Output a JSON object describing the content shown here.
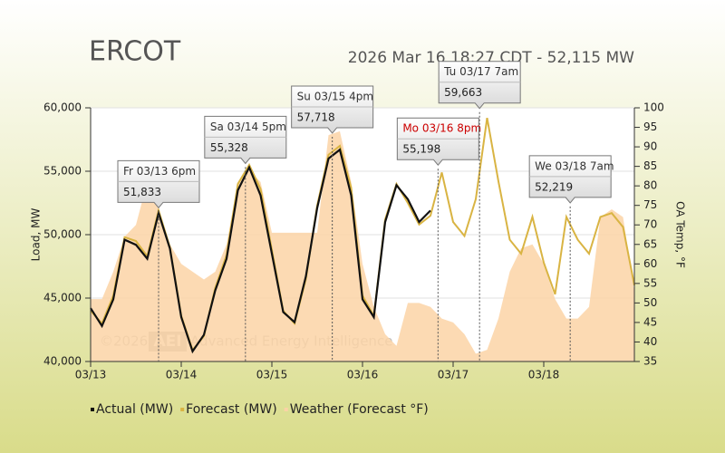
{
  "chart_data": {
    "type": "line",
    "title": "ERCOT",
    "subtitle": "2026 Mar 16 18:27 CDT - 52,115 MW",
    "ylabel": "Load, MW",
    "y2label": "OA Temp, °F",
    "watermark": [
      "©2026",
      "AEI",
      "Advanced Energy Intelligence"
    ],
    "x": [
      0,
      3,
      6,
      9,
      12,
      15,
      18,
      21,
      24,
      27,
      30,
      33,
      36,
      39,
      42,
      45,
      48,
      51,
      54,
      57,
      60,
      63,
      66,
      69,
      72,
      75,
      78,
      81,
      84,
      87,
      90,
      93,
      96,
      99,
      102,
      105,
      108,
      111,
      114,
      117,
      120,
      123,
      126,
      129,
      132,
      135,
      138,
      141,
      144
    ],
    "xlim": [
      0,
      144
    ],
    "xticks": [
      {
        "value": 0,
        "label": "03/13"
      },
      {
        "value": 24,
        "label": "03/14"
      },
      {
        "value": 48,
        "label": "03/15"
      },
      {
        "value": 72,
        "label": "03/16"
      },
      {
        "value": 96,
        "label": "03/17"
      },
      {
        "value": 120,
        "label": "03/18"
      }
    ],
    "ylim": [
      40000,
      60000
    ],
    "yticks": [
      {
        "value": 40000,
        "label": "40,000"
      },
      {
        "value": 45000,
        "label": "45,000"
      },
      {
        "value": 50000,
        "label": "50,000"
      },
      {
        "value": 55000,
        "label": "55,000"
      },
      {
        "value": 60000,
        "label": "60,000"
      }
    ],
    "y2lim": [
      35,
      100
    ],
    "y2ticks": [
      35,
      40,
      45,
      50,
      55,
      60,
      65,
      70,
      75,
      80,
      85,
      90,
      95,
      100
    ],
    "grid": true,
    "legend": "bottom",
    "series": [
      {
        "name": "Weather (Forecast °F)",
        "color": "#fbd3a6",
        "style": "area",
        "axis": "y2",
        "values": [
          51,
          51,
          58,
          67,
          70,
          81,
          74,
          65,
          60,
          58,
          56,
          58,
          65,
          81,
          84,
          81,
          68,
          68,
          68,
          68,
          68,
          93,
          94,
          81,
          60,
          49,
          42,
          39,
          50,
          50,
          49,
          46,
          45,
          42,
          37,
          38,
          46,
          58,
          64,
          65,
          60,
          51,
          46,
          46,
          49,
          72,
          74,
          72,
          53
        ]
      },
      {
        "name": "Forecast (MW)",
        "color": "#d9b443",
        "style": "line",
        "values": [
          44000,
          43000,
          45200,
          49800,
          49500,
          48300,
          51900,
          49000,
          43600,
          40900,
          42000,
          45800,
          48400,
          54000,
          55500,
          53600,
          48800,
          44000,
          43000,
          46500,
          52300,
          56300,
          57000,
          53700,
          45200,
          43600,
          51200,
          54000,
          52500,
          50800,
          51500,
          54900,
          51000,
          49900,
          52800,
          59200,
          54200,
          49600,
          48500,
          51400,
          47800,
          45300,
          51400,
          49600,
          48500,
          51400,
          51700,
          50600,
          46000
        ]
      },
      {
        "name": "Actual (MW)",
        "color": "#111111",
        "style": "line",
        "values": [
          44200,
          42800,
          44900,
          49600,
          49200,
          48100,
          51700,
          48900,
          43500,
          40800,
          42100,
          45600,
          48100,
          53500,
          55300,
          53100,
          48500,
          43900,
          43100,
          46700,
          52100,
          56000,
          56700,
          53100,
          44900,
          43500,
          51000,
          53900,
          52800,
          51000,
          51900,
          null,
          null,
          null,
          null,
          null,
          null,
          null,
          null,
          null,
          null,
          null,
          null,
          null,
          null,
          null,
          null,
          null,
          null
        ]
      }
    ],
    "annotations": [
      {
        "x": 18,
        "value": 51833,
        "title": "Fr 03/13 6pm",
        "label": "51,833",
        "title_color": "#333333"
      },
      {
        "x": 41,
        "value": 55328,
        "title": "Sa 03/14 5pm",
        "label": "55,328",
        "title_color": "#333333"
      },
      {
        "x": 64,
        "value": 57718,
        "title": "Su 03/15 4pm",
        "label": "57,718",
        "title_color": "#333333"
      },
      {
        "x": 92,
        "value": 55198,
        "title": "Mo 03/16 8pm",
        "label": "55,198",
        "title_color": "#cc0000"
      },
      {
        "x": 103,
        "value": 59663,
        "title": "Tu 03/17 7am",
        "label": "59,663",
        "title_color": "#333333"
      },
      {
        "x": 127,
        "value": 52219,
        "title": "We 03/18 7am",
        "label": "52,219",
        "title_color": "#333333"
      }
    ]
  }
}
